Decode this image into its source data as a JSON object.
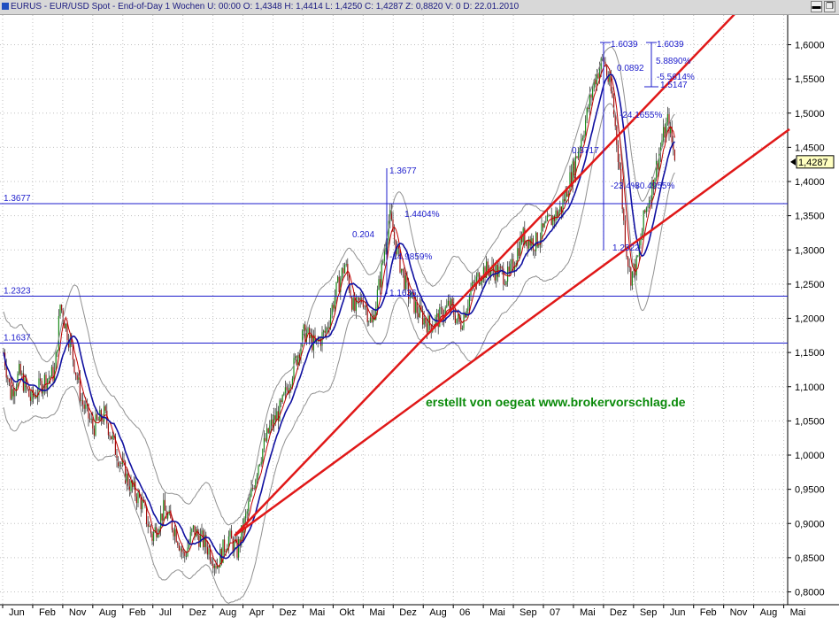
{
  "window": {
    "title": "EURUS - EUR/USD Spot - End-of-Day 1 Wochen  U: 00:00  O: 1,4348  H: 1,4414  L: 1,4250  C: 1,4287  Z: 0,8820  V: 0  D: 22.01.2010",
    "minimize": "▬",
    "restore": "❐"
  },
  "chart_data": {
    "type": "candlestick",
    "y_axis": {
      "range": [
        0.79,
        1.63
      ],
      "ticks": [
        "1,6000",
        "1,5500",
        "1,5000",
        "1,4500",
        "1,4000",
        "1,3500",
        "1,3000",
        "1,2500",
        "1,2000",
        "1,1500",
        "1,1000",
        "1,0500",
        "1,0000",
        "0,9500",
        "0,9000",
        "0,8500",
        "0,8000"
      ]
    },
    "x_axis": {
      "labels": [
        "Jun",
        "Feb",
        "Nov",
        "Aug",
        "Feb",
        "Jul",
        "Dez",
        "Aug",
        "Apr",
        "Dez",
        "Mai",
        "Okt",
        "Mai",
        "Dez",
        "Aug",
        "06",
        "Mai",
        "Sep",
        "07",
        "Mai",
        "Dez",
        "Sep",
        "Jun",
        "Feb",
        "Nov",
        "Aug",
        "Mai"
      ]
    },
    "last_price": "1,4287",
    "horizontal_levels": [
      {
        "value": 1.3677,
        "label": "1.3677"
      },
      {
        "value": 1.2323,
        "label": "1.2323"
      },
      {
        "value": 1.1637,
        "label": "1.1637"
      }
    ],
    "annotations": [
      "1.6039",
      "1.6039",
      "5.8890%",
      "0.0892",
      "-5.5614%",
      "1.5147",
      "1.3677",
      "0.204",
      "1.4404%",
      "-14.9859%",
      "1.1636",
      "-24.1655%",
      "-23.4%",
      "1.2322",
      "0.3717",
      "-30.4955%"
    ],
    "watermark": "erstellt von oegeat  www.brokervorschlag.de",
    "colors": {
      "grid": "#c0c0c0",
      "level_line": "#1c1ccc",
      "trend_line": "#e01818",
      "ma_blue": "#1010a0",
      "ma_red": "#c00000",
      "band": "#909090",
      "watermark": "#0a8a0a"
    }
  }
}
